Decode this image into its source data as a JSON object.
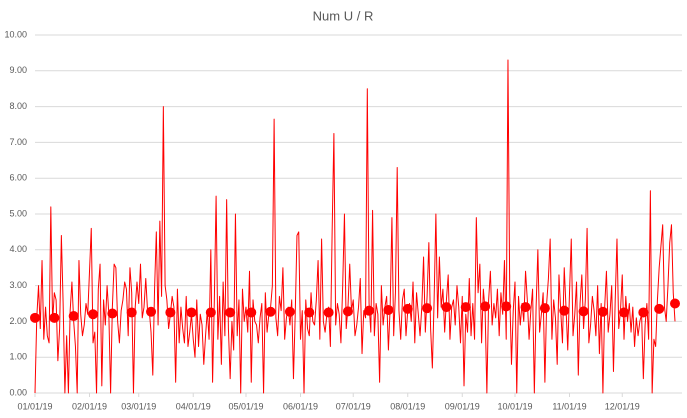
{
  "chart_data": {
    "type": "line",
    "title": "Num U / R",
    "xlim": [
      0,
      364
    ],
    "xticks": [
      {
        "value": 0,
        "label": "01/01/19"
      },
      {
        "value": 31,
        "label": "02/01/19"
      },
      {
        "value": 59,
        "label": "03/01/19"
      },
      {
        "value": 90,
        "label": "04/01/19"
      },
      {
        "value": 120,
        "label": "05/01/19"
      },
      {
        "value": 151,
        "label": "06/01/19"
      },
      {
        "value": 181,
        "label": "07/01/19"
      },
      {
        "value": 212,
        "label": "08/01/19"
      },
      {
        "value": 243,
        "label": "09/01/19"
      },
      {
        "value": 273,
        "label": "10/01/19"
      },
      {
        "value": 304,
        "label": "11/01/19"
      },
      {
        "value": 334,
        "label": "12/01/19"
      }
    ],
    "ylim": [
      0,
      10
    ],
    "yticks": [
      {
        "value": 0,
        "label": "0.00"
      },
      {
        "value": 1,
        "label": "1.00"
      },
      {
        "value": 2,
        "label": "2.00"
      },
      {
        "value": 3,
        "label": "3.00"
      },
      {
        "value": 4,
        "label": "4.00"
      },
      {
        "value": 5,
        "label": "5.00"
      },
      {
        "value": 6,
        "label": "6.00"
      },
      {
        "value": 7,
        "label": "7.00"
      },
      {
        "value": 8,
        "label": "8.00"
      },
      {
        "value": 9,
        "label": "9.00"
      },
      {
        "value": 10,
        "label": "10.00"
      }
    ],
    "grid": true,
    "series": [
      {
        "mode": "line",
        "color": "#ff0000",
        "x": [
          0,
          1,
          2,
          3,
          4,
          5,
          6,
          7,
          8,
          9,
          10,
          11,
          12,
          13,
          14,
          15,
          16,
          17,
          18,
          19,
          20,
          21,
          22,
          23,
          24,
          25,
          26,
          27,
          28,
          29,
          30,
          31,
          32,
          33,
          34,
          35,
          36,
          37,
          38,
          39,
          40,
          41,
          42,
          43,
          44,
          45,
          46,
          47,
          48,
          49,
          50,
          51,
          52,
          53,
          54,
          55,
          56,
          57,
          58,
          59,
          60,
          61,
          62,
          63,
          64,
          65,
          66,
          67,
          68,
          69,
          70,
          71,
          72,
          73,
          74,
          75,
          76,
          77,
          78,
          79,
          80,
          81,
          82,
          83,
          84,
          85,
          86,
          87,
          88,
          89,
          90,
          91,
          92,
          93,
          94,
          95,
          96,
          97,
          98,
          99,
          100,
          101,
          102,
          103,
          104,
          105,
          106,
          107,
          108,
          109,
          110,
          111,
          112,
          113,
          114,
          115,
          116,
          117,
          118,
          119,
          120,
          121,
          122,
          123,
          124,
          125,
          126,
          127,
          128,
          129,
          130,
          131,
          132,
          133,
          134,
          135,
          136,
          137,
          138,
          139,
          140,
          141,
          142,
          143,
          144,
          145,
          146,
          147,
          148,
          149,
          150,
          151,
          152,
          153,
          154,
          155,
          156,
          157,
          158,
          159,
          160,
          161,
          162,
          163,
          164,
          165,
          166,
          167,
          168,
          169,
          170,
          171,
          172,
          173,
          174,
          175,
          176,
          177,
          178,
          179,
          180,
          181,
          182,
          183,
          184,
          185,
          186,
          187,
          188,
          189,
          190,
          191,
          192,
          193,
          194,
          195,
          196,
          197,
          198,
          199,
          200,
          201,
          202,
          203,
          204,
          205,
          206,
          207,
          208,
          209,
          210,
          211,
          212,
          213,
          214,
          215,
          216,
          217,
          218,
          219,
          220,
          221,
          222,
          223,
          224,
          225,
          226,
          227,
          228,
          229,
          230,
          231,
          232,
          233,
          234,
          235,
          236,
          237,
          238,
          239,
          240,
          241,
          242,
          243,
          244,
          245,
          246,
          247,
          248,
          249,
          250,
          251,
          252,
          253,
          254,
          255,
          256,
          257,
          258,
          259,
          260,
          261,
          262,
          263,
          264,
          265,
          266,
          267,
          268,
          269,
          270,
          271,
          272,
          273,
          274,
          275,
          276,
          277,
          278,
          279,
          280,
          281,
          282,
          283,
          284,
          285,
          286,
          287,
          288,
          289,
          290,
          291,
          292,
          293,
          294,
          295,
          296,
          297,
          298,
          299,
          300,
          301,
          302,
          303,
          304,
          305,
          306,
          307,
          308,
          309,
          310,
          311,
          312,
          313,
          314,
          315,
          316,
          317,
          318,
          319,
          320,
          321,
          322,
          323,
          324,
          325,
          326,
          327,
          328,
          329,
          330,
          331,
          332,
          333,
          334,
          335,
          336,
          337,
          338,
          339,
          340,
          341,
          342,
          343,
          344,
          345,
          346,
          347,
          348,
          349,
          350,
          351,
          352,
          353,
          354,
          355,
          356,
          357,
          358,
          359,
          360,
          361,
          362,
          363,
          364
        ],
        "values": [
          0,
          2.1,
          3.0,
          1.8,
          3.7,
          1.5,
          2.4,
          1.6,
          1.4,
          5.2,
          2.0,
          2.8,
          2.6,
          0.9,
          1.8,
          4.4,
          2.5,
          0,
          1.6,
          0,
          2.3,
          3.1,
          2.0,
          1.3,
          0,
          3.7,
          2.2,
          1.6,
          1.9,
          2.5,
          2.2,
          3.4,
          4.6,
          1.4,
          1.7,
          0,
          2.9,
          3.6,
          0.2,
          2.6,
          1.9,
          3.0,
          2.2,
          0,
          2.4,
          3.6,
          3.5,
          2.0,
          1.4,
          2.3,
          2.6,
          3.1,
          2.9,
          1.6,
          3.5,
          2.8,
          0,
          2.4,
          3.1,
          2.5,
          3.6,
          2.1,
          2.4,
          3.2,
          2.3,
          2.3,
          1.7,
          0.5,
          2.9,
          4.5,
          1.9,
          4.8,
          2.7,
          8.0,
          3.0,
          2.6,
          1.8,
          2.2,
          2.7,
          2.4,
          0.3,
          2.9,
          1.4,
          2.4,
          1.8,
          1.4,
          2.7,
          1.3,
          1.7,
          2.2,
          1.5,
          1.0,
          2.6,
          1.3,
          2.2,
          1.9,
          0.8,
          1.6,
          2.3,
          1.5,
          4.0,
          0.3,
          2.6,
          5.5,
          1.5,
          2.7,
          0.8,
          3.1,
          1.6,
          5.4,
          1.8,
          0.4,
          2.0,
          1.2,
          5.0,
          1.6,
          2.6,
          0,
          2.9,
          2.0,
          2.4,
          1.7,
          3.4,
          0.3,
          2.6,
          2.0,
          1.9,
          1.4,
          2.1,
          2.5,
          0,
          2.8,
          1.7,
          2.2,
          2.4,
          3.0,
          7.65,
          2.1,
          1.6,
          2.7,
          2.3,
          3.5,
          1.5,
          2.1,
          2.4,
          1.9,
          2.6,
          0.4,
          2.2,
          4.4,
          4.5,
          1.5,
          2.3,
          0,
          2.6,
          1.8,
          1.6,
          2.8,
          2.0,
          1.9,
          2.6,
          3.7,
          1.5,
          4.3,
          2.0,
          1.7,
          2.2,
          2.4,
          1.3,
          4.5,
          7.25,
          1.9,
          2.5,
          2.2,
          1.4,
          3.0,
          5.0,
          1.8,
          2.4,
          3.6,
          2.3,
          2.6,
          1.6,
          1.9,
          2.4,
          3.2,
          1.1,
          2.3,
          2.1,
          8.5,
          2.5,
          1.7,
          5.1,
          1.6,
          2.5,
          2.2,
          0.3,
          3.0,
          1.9,
          2.4,
          2.7,
          1.2,
          2.4,
          4.9,
          1.6,
          2.8,
          6.3,
          2.3,
          1.5,
          2.6,
          2.9,
          1.6,
          2.3,
          2.5,
          2.0,
          3.1,
          1.4,
          2.8,
          2.2,
          1.6,
          2.4,
          3.8,
          1.7,
          2.7,
          4.2,
          1.8,
          0.7,
          2.6,
          5.0,
          2.1,
          3.8,
          2.4,
          2.9,
          1.7,
          2.6,
          3.3,
          1.5,
          2.4,
          2.6,
          1.9,
          3.0,
          2.4,
          1.4,
          2.7,
          0.2,
          2.2,
          1.7,
          3.2,
          1.6,
          2.5,
          1.5,
          4.9,
          2.8,
          3.6,
          1.4,
          2.9,
          2.3,
          0,
          2.6,
          3.4,
          1.9,
          2.5,
          2.1,
          2.9,
          1.6,
          2.8,
          2.2,
          3.7,
          1.5,
          9.3,
          2.8,
          0.8,
          2.3,
          3.1,
          0,
          2.7,
          1.9,
          2.5,
          2.0,
          3.4,
          2.6,
          1.5,
          2.3,
          2.9,
          0,
          2.4,
          4.0,
          1.7,
          2.2,
          2.8,
          0.3,
          2.5,
          3.2,
          4.3,
          1.5,
          2.6,
          2.1,
          0.8,
          3.3,
          2.3,
          1.4,
          3.5,
          2.4,
          1.2,
          2.8,
          4.3,
          1.6,
          2.2,
          3.1,
          0.5,
          2.5,
          3.3,
          1.8,
          2.6,
          4.6,
          1.4,
          1.9,
          2.7,
          2.3,
          1.6,
          3.0,
          1.1,
          2.5,
          0,
          2.4,
          3.4,
          1.7,
          2.2,
          3.0,
          0.6,
          2.6,
          4.3,
          1.8,
          2.3,
          3.3,
          1.5,
          2.7,
          2.0,
          2.5,
          1.7,
          2.4,
          1.3,
          2.1,
          1.6,
          2.0,
          2.2,
          0.4,
          1.9,
          2.5,
          1.5,
          5.65,
          0,
          1.5,
          1.3,
          2.6,
          3.5,
          4.1,
          4.7,
          2.4,
          2.0,
          3.0,
          4.2,
          4.7,
          2.8,
          2.0
        ]
      },
      {
        "mode": "markers",
        "color": "#ff0000",
        "x": [
          0,
          11,
          22,
          33,
          44,
          55,
          66,
          77,
          89,
          100,
          111,
          123,
          134,
          145,
          156,
          167,
          178,
          190,
          201,
          212,
          223,
          234,
          245,
          256,
          268,
          279,
          290,
          301,
          312,
          323,
          335,
          346,
          355,
          364
        ],
        "values": [
          2.1,
          2.1,
          2.15,
          2.2,
          2.22,
          2.25,
          2.27,
          2.25,
          2.25,
          2.25,
          2.25,
          2.25,
          2.27,
          2.27,
          2.25,
          2.25,
          2.28,
          2.3,
          2.32,
          2.35,
          2.37,
          2.4,
          2.4,
          2.42,
          2.42,
          2.4,
          2.37,
          2.3,
          2.28,
          2.27,
          2.25,
          2.25,
          2.35,
          2.5
        ]
      }
    ]
  }
}
